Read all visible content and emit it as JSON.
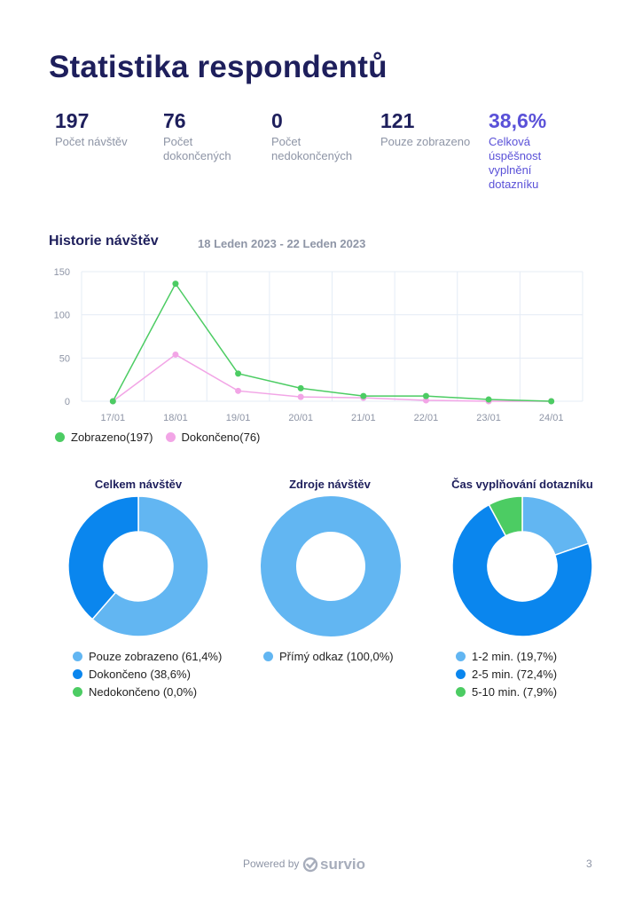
{
  "page": {
    "title": "Statistika respondentů",
    "footer_powered": "Powered by",
    "footer_brand": "survio",
    "page_number": "3"
  },
  "stats": [
    {
      "value": "197",
      "label": "Počet návštěv"
    },
    {
      "value": "76",
      "label": "Počet dokončených"
    },
    {
      "value": "0",
      "label": "Počet nedokončených"
    },
    {
      "value": "121",
      "label": "Pouze zobrazeno"
    },
    {
      "value": "38,6%",
      "label": "Celková úspěšnost vyplnění dotazníku"
    }
  ],
  "history": {
    "title": "Historie návštěv",
    "date_range": "18 Leden 2023 - 22 Leden 2023"
  },
  "chart_data": [
    {
      "type": "line",
      "x": [
        "17/01",
        "18/01",
        "19/01",
        "20/01",
        "21/01",
        "22/01",
        "23/01",
        "24/01"
      ],
      "series": [
        {
          "name": "Zobrazeno(197)",
          "color": "#4ccc63",
          "values": [
            0,
            136,
            32,
            15,
            6,
            6,
            2,
            0
          ]
        },
        {
          "name": "Dokončeno(76)",
          "color": "#f2a5e6",
          "values": [
            0,
            54,
            12,
            5,
            4,
            1,
            0,
            0
          ]
        }
      ],
      "ylim": [
        0,
        150
      ],
      "yticks": [
        0,
        50,
        100,
        150
      ],
      "grid": true,
      "legend": "bottom-left"
    },
    {
      "type": "pie",
      "title": "Celkem návštěv",
      "slices": [
        {
          "label": "Pouze zobrazeno (61,4%)",
          "value": 61.4,
          "color": "#62b6f2"
        },
        {
          "label": "Dokončeno (38,6%)",
          "value": 38.6,
          "color": "#0a86ee"
        },
        {
          "label": "Nedokončeno (0,0%)",
          "value": 0.0,
          "color": "#4ccc63"
        }
      ]
    },
    {
      "type": "pie",
      "title": "Zdroje návštěv",
      "slices": [
        {
          "label": "Přímý odkaz (100,0%)",
          "value": 100.0,
          "color": "#62b6f2"
        }
      ]
    },
    {
      "type": "pie",
      "title": "Čas vyplňování dotazníku",
      "slices": [
        {
          "label": "1-2 min. (19,7%)",
          "value": 19.7,
          "color": "#62b6f2"
        },
        {
          "label": "2-5 min. (72,4%)",
          "value": 72.4,
          "color": "#0a86ee"
        },
        {
          "label": "5-10 min. (7,9%)",
          "value": 7.9,
          "color": "#4ccc63"
        }
      ]
    }
  ]
}
